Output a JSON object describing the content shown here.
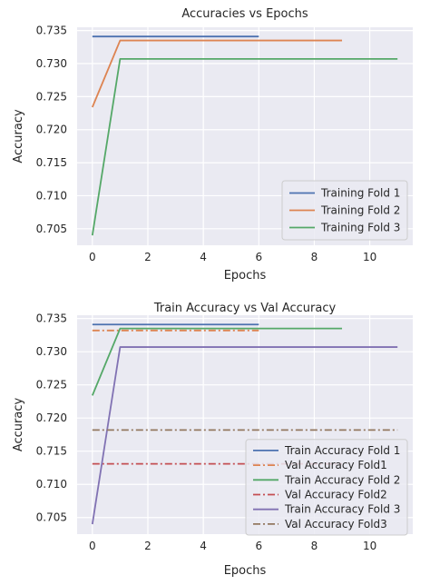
{
  "chart_data": [
    {
      "type": "line",
      "title": "Accuracies vs Epochs",
      "xlabel": "Epochs",
      "ylabel": "Accuracy",
      "xlim": [
        -0.55,
        11.55
      ],
      "ylim": [
        0.7025,
        0.7355
      ],
      "xticks": [
        0,
        2,
        4,
        6,
        8,
        10
      ],
      "yticks": [
        0.705,
        0.71,
        0.715,
        0.72,
        0.725,
        0.73,
        0.735
      ],
      "ytick_labels": [
        "0.705",
        "0.710",
        "0.715",
        "0.720",
        "0.725",
        "0.730",
        "0.735"
      ],
      "grid": true,
      "legend_position": "lower-right",
      "series": [
        {
          "name": "Training Fold 1",
          "color": "#4c72b0",
          "dash": "solid",
          "x": [
            0,
            1,
            2,
            3,
            4,
            5,
            6
          ],
          "y": [
            0.7341,
            0.7341,
            0.7341,
            0.7341,
            0.7341,
            0.7341,
            0.7341
          ]
        },
        {
          "name": "Training Fold 2",
          "color": "#dd8452",
          "dash": "solid",
          "x": [
            0,
            1,
            2,
            3,
            4,
            5,
            6,
            7,
            8,
            9
          ],
          "y": [
            0.7234,
            0.7335,
            0.7335,
            0.7335,
            0.7335,
            0.7335,
            0.7335,
            0.7335,
            0.7335,
            0.7335
          ]
        },
        {
          "name": "Training Fold 3",
          "color": "#55a868",
          "dash": "solid",
          "x": [
            0,
            1,
            2,
            3,
            4,
            5,
            6,
            7,
            8,
            9,
            10,
            11
          ],
          "y": [
            0.704,
            0.7307,
            0.7307,
            0.7307,
            0.7307,
            0.7307,
            0.7307,
            0.7307,
            0.7307,
            0.7307,
            0.7307,
            0.7307
          ]
        }
      ]
    },
    {
      "type": "line",
      "title": "Train Accuracy vs Val Accuracy",
      "xlabel": "Epochs",
      "ylabel": "Accuracy",
      "xlim": [
        -0.55,
        11.55
      ],
      "ylim": [
        0.7025,
        0.7355
      ],
      "xticks": [
        0,
        2,
        4,
        6,
        8,
        10
      ],
      "yticks": [
        0.705,
        0.71,
        0.715,
        0.72,
        0.725,
        0.73,
        0.735
      ],
      "ytick_labels": [
        "0.705",
        "0.710",
        "0.715",
        "0.720",
        "0.725",
        "0.730",
        "0.735"
      ],
      "grid": true,
      "legend_position": "lower-right",
      "series": [
        {
          "name": "Train Accuracy Fold 1",
          "color": "#4c72b0",
          "dash": "solid",
          "x": [
            0,
            1,
            2,
            3,
            4,
            5,
            6
          ],
          "y": [
            0.7341,
            0.7341,
            0.7341,
            0.7341,
            0.7341,
            0.7341,
            0.7341
          ]
        },
        {
          "name": "Val Accuracy Fold1",
          "color": "#dd8452",
          "dash": "dashdot",
          "x": [
            0,
            1,
            2,
            3,
            4,
            5,
            6
          ],
          "y": [
            0.7332,
            0.7332,
            0.7332,
            0.7332,
            0.7332,
            0.7332,
            0.7332
          ]
        },
        {
          "name": "Train Accuracy Fold 2",
          "color": "#55a868",
          "dash": "solid",
          "x": [
            0,
            1,
            2,
            3,
            4,
            5,
            6,
            7,
            8,
            9
          ],
          "y": [
            0.7234,
            0.7335,
            0.7335,
            0.7335,
            0.7335,
            0.7335,
            0.7335,
            0.7335,
            0.7335,
            0.7335
          ]
        },
        {
          "name": "Val Accuracy Fold2",
          "color": "#c44e52",
          "dash": "dashdot",
          "x": [
            0,
            1,
            2,
            3,
            4,
            5,
            6,
            7,
            8,
            9
          ],
          "y": [
            0.7131,
            0.7131,
            0.7131,
            0.7131,
            0.7131,
            0.7131,
            0.7131,
            0.7131,
            0.7131,
            0.7131
          ]
        },
        {
          "name": "Train Accuracy Fold 3",
          "color": "#8172b3",
          "dash": "solid",
          "x": [
            0,
            1,
            2,
            3,
            4,
            5,
            6,
            7,
            8,
            9,
            10,
            11
          ],
          "y": [
            0.704,
            0.7307,
            0.7307,
            0.7307,
            0.7307,
            0.7307,
            0.7307,
            0.7307,
            0.7307,
            0.7307,
            0.7307,
            0.7307
          ]
        },
        {
          "name": "Val Accuracy Fold3",
          "color": "#937860",
          "dash": "dashdot",
          "x": [
            0,
            1,
            2,
            3,
            4,
            5,
            6,
            7,
            8,
            9,
            10,
            11
          ],
          "y": [
            0.7182,
            0.7182,
            0.7182,
            0.7182,
            0.7182,
            0.7182,
            0.7182,
            0.7182,
            0.7182,
            0.7182,
            0.7182,
            0.7182
          ]
        }
      ]
    }
  ]
}
